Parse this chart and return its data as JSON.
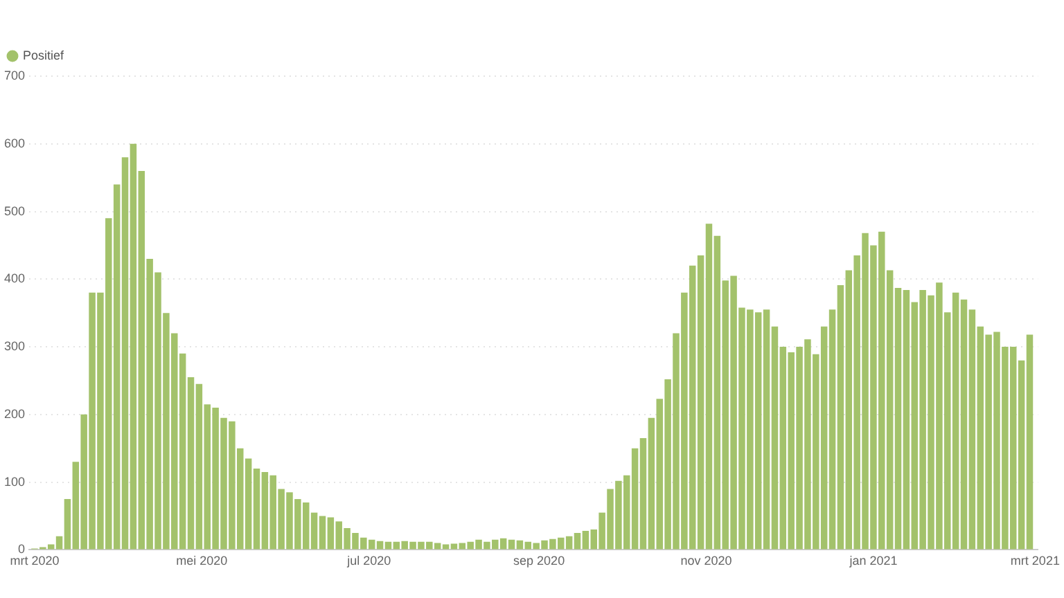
{
  "chart_data": {
    "type": "bar",
    "x": [
      "2020-03-01",
      "2020-03-04",
      "2020-03-07",
      "2020-03-10",
      "2020-03-13",
      "2020-03-16",
      "2020-03-19",
      "2020-03-22",
      "2020-03-25",
      "2020-03-28",
      "2020-03-31",
      "2020-04-03",
      "2020-04-06",
      "2020-04-09",
      "2020-04-12",
      "2020-04-15",
      "2020-04-18",
      "2020-04-21",
      "2020-04-24",
      "2020-04-27",
      "2020-04-30",
      "2020-05-03",
      "2020-05-06",
      "2020-05-09",
      "2020-05-12",
      "2020-05-15",
      "2020-05-18",
      "2020-05-21",
      "2020-05-24",
      "2020-05-27",
      "2020-05-30",
      "2020-06-02",
      "2020-06-05",
      "2020-06-08",
      "2020-06-11",
      "2020-06-14",
      "2020-06-17",
      "2020-06-20",
      "2020-06-23",
      "2020-06-26",
      "2020-06-29",
      "2020-07-02",
      "2020-07-05",
      "2020-07-08",
      "2020-07-11",
      "2020-07-14",
      "2020-07-17",
      "2020-07-20",
      "2020-07-23",
      "2020-07-26",
      "2020-07-29",
      "2020-08-01",
      "2020-08-04",
      "2020-08-07",
      "2020-08-10",
      "2020-08-13",
      "2020-08-16",
      "2020-08-19",
      "2020-08-22",
      "2020-08-25",
      "2020-08-28",
      "2020-08-31",
      "2020-09-03",
      "2020-09-06",
      "2020-09-09",
      "2020-09-12",
      "2020-09-15",
      "2020-09-18",
      "2020-09-21",
      "2020-09-24",
      "2020-09-27",
      "2020-09-30",
      "2020-10-03",
      "2020-10-06",
      "2020-10-09",
      "2020-10-12",
      "2020-10-15",
      "2020-10-18",
      "2020-10-21",
      "2020-10-24",
      "2020-10-27",
      "2020-10-30",
      "2020-11-02",
      "2020-11-05",
      "2020-11-08",
      "2020-11-11",
      "2020-11-14",
      "2020-11-17",
      "2020-11-20",
      "2020-11-23",
      "2020-11-26",
      "2020-11-29",
      "2020-12-02",
      "2020-12-05",
      "2020-12-08",
      "2020-12-11",
      "2020-12-14",
      "2020-12-17",
      "2020-12-20",
      "2020-12-23",
      "2020-12-26",
      "2020-12-29",
      "2021-01-01",
      "2021-01-04",
      "2021-01-07",
      "2021-01-10",
      "2021-01-13",
      "2021-01-16",
      "2021-01-19",
      "2021-01-22",
      "2021-01-25",
      "2021-01-28",
      "2021-01-31",
      "2021-02-03",
      "2021-02-06",
      "2021-02-09",
      "2021-02-12",
      "2021-02-15",
      "2021-02-18",
      "2021-02-21",
      "2021-02-24",
      "2021-02-27"
    ],
    "series": [
      {
        "name": "Positief",
        "color": "#a3c26b",
        "values": [
          2,
          4,
          8,
          20,
          75,
          130,
          200,
          380,
          380,
          490,
          540,
          580,
          600,
          560,
          430,
          410,
          350,
          320,
          290,
          255,
          245,
          215,
          210,
          195,
          190,
          150,
          135,
          120,
          115,
          110,
          90,
          85,
          75,
          70,
          55,
          50,
          48,
          42,
          32,
          25,
          18,
          15,
          13,
          12,
          12,
          13,
          12,
          12,
          12,
          10,
          8,
          9,
          10,
          12,
          15,
          12,
          15,
          17,
          15,
          14,
          12,
          10,
          14,
          16,
          18,
          20,
          25,
          28,
          30,
          55,
          90,
          102,
          110,
          150,
          165,
          195,
          223,
          252,
          320,
          380,
          420,
          435,
          482,
          464,
          398,
          405,
          358,
          355,
          351,
          355,
          330,
          300,
          292,
          300,
          311,
          289,
          330,
          355,
          391,
          413,
          435,
          468,
          450,
          470,
          413,
          387,
          384,
          366,
          384,
          376,
          395,
          351,
          380,
          370,
          355,
          330,
          318,
          322,
          300,
          300,
          280,
          318
        ]
      }
    ],
    "xlim": [
      "2020-02-28",
      "2021-03-02"
    ],
    "xticks": [
      {
        "value": "2020-03-01",
        "label": "mrt 2020"
      },
      {
        "value": "2020-05-01",
        "label": "mei 2020"
      },
      {
        "value": "2020-07-01",
        "label": "jul 2020"
      },
      {
        "value": "2020-09-01",
        "label": "sep 2020"
      },
      {
        "value": "2020-11-01",
        "label": "nov 2020"
      },
      {
        "value": "2021-01-01",
        "label": "jan 2021"
      },
      {
        "value": "2021-03-01",
        "label": "mrt 2021"
      }
    ],
    "ylim": [
      0,
      700
    ],
    "yticks": [
      0,
      100,
      200,
      300,
      400,
      500,
      600,
      700
    ],
    "grid": "y",
    "legend": "top left"
  }
}
